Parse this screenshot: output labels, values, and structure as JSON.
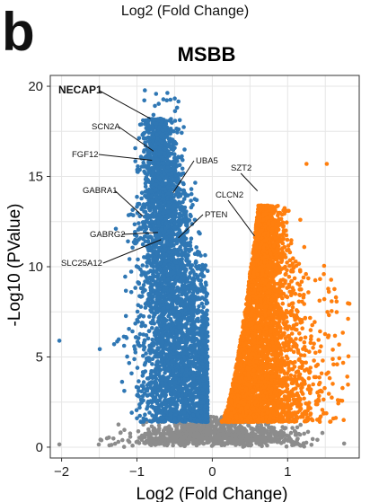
{
  "header": {
    "caption": "Log2 (Fold Change)",
    "panel_letter": "b"
  },
  "colors": {
    "down": "#2f77b4",
    "up": "#ff7f0e",
    "ns": "#8c8c8c",
    "grid": "#e6e6e6"
  },
  "chart_data": {
    "type": "scatter",
    "title": "MSBB",
    "xlabel": "Log2 (Fold Change)",
    "ylabel": "-Log10 (PValue)",
    "xlim": [
      -2.15,
      1.95
    ],
    "ylim": [
      -0.6,
      20.6
    ],
    "xticks": [
      -2,
      -1,
      0,
      1
    ],
    "xtick_labels": [
      "−2",
      "−1",
      "0",
      "1"
    ],
    "yticks": [
      0,
      5,
      10,
      15,
      20
    ],
    "grid": true,
    "series": [
      {
        "color_key": "down"
      },
      {
        "color_key": "up"
      },
      {
        "color_key": "ns"
      }
    ],
    "labeled_genes": [
      {
        "gene": "NECAP1",
        "x": -0.82,
        "y": 18.2,
        "bold": true
      },
      {
        "gene": "SCN2A",
        "x": -0.78,
        "y": 16.4
      },
      {
        "gene": "FGF12",
        "x": -0.8,
        "y": 15.9
      },
      {
        "gene": "UBA5",
        "x": -0.52,
        "y": 14.1
      },
      {
        "gene": "SZT2",
        "x": 0.6,
        "y": 14.2
      },
      {
        "gene": "GABRA1",
        "x": -0.92,
        "y": 12.8
      },
      {
        "gene": "CLCN2",
        "x": 0.56,
        "y": 11.7
      },
      {
        "gene": "PTEN",
        "x": -0.45,
        "y": 11.6
      },
      {
        "gene": "GABRG2",
        "x": -0.72,
        "y": 11.9
      },
      {
        "gene": "SLC25A12",
        "x": -0.68,
        "y": 11.5
      }
    ],
    "notable_points": [
      {
        "x": -2.03,
        "y": 0.15,
        "group": "ns"
      },
      {
        "x": -2.03,
        "y": 5.9,
        "group": "down"
      },
      {
        "x": -1.28,
        "y": 12.1,
        "group": "down"
      },
      {
        "x": 1.25,
        "y": 15.7,
        "group": "up"
      },
      {
        "x": 1.52,
        "y": 15.7,
        "group": "up"
      },
      {
        "x": 1.75,
        "y": 0.2,
        "group": "ns"
      }
    ]
  }
}
